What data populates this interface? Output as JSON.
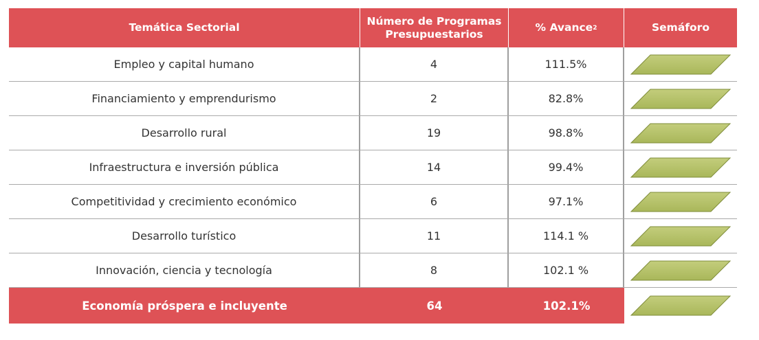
{
  "header": {
    "col1": "Temática Sectorial",
    "col2": "Número de Programas Presupuestarios",
    "col3": "% Avance",
    "col3_sup": "2",
    "col4": "Semáforo"
  },
  "rows": [
    {
      "tematica": "Empleo y capital humano",
      "programas": "4",
      "avance": "111.5%",
      "semaforo": "green"
    },
    {
      "tematica": "Financiamiento y emprendurismo",
      "programas": "2",
      "avance": "82.8%",
      "semaforo": "green"
    },
    {
      "tematica": "Desarrollo rural",
      "programas": "19",
      "avance": "98.8%",
      "semaforo": "green"
    },
    {
      "tematica": "Infraestructura e inversión pública",
      "programas": "14",
      "avance": "99.4%",
      "semaforo": "green"
    },
    {
      "tematica": "Competitividad y crecimiento económico",
      "programas": "6",
      "avance": "97.1%",
      "semaforo": "green"
    },
    {
      "tematica": "Desarrollo turístico",
      "programas": "11",
      "avance": "114.1 %",
      "semaforo": "green"
    },
    {
      "tematica": "Innovación, ciencia y tecnología",
      "programas": "8",
      "avance": "102.1 %",
      "semaforo": "green"
    }
  ],
  "total": {
    "tematica": "Economía próspera e incluyente",
    "programas": "64",
    "avance": "102.1%",
    "semaforo": "green"
  },
  "colors": {
    "header_bg": "#de5256",
    "semaforo_green": "#a9b75a",
    "semaforo_green_light": "#c3cd7c"
  }
}
